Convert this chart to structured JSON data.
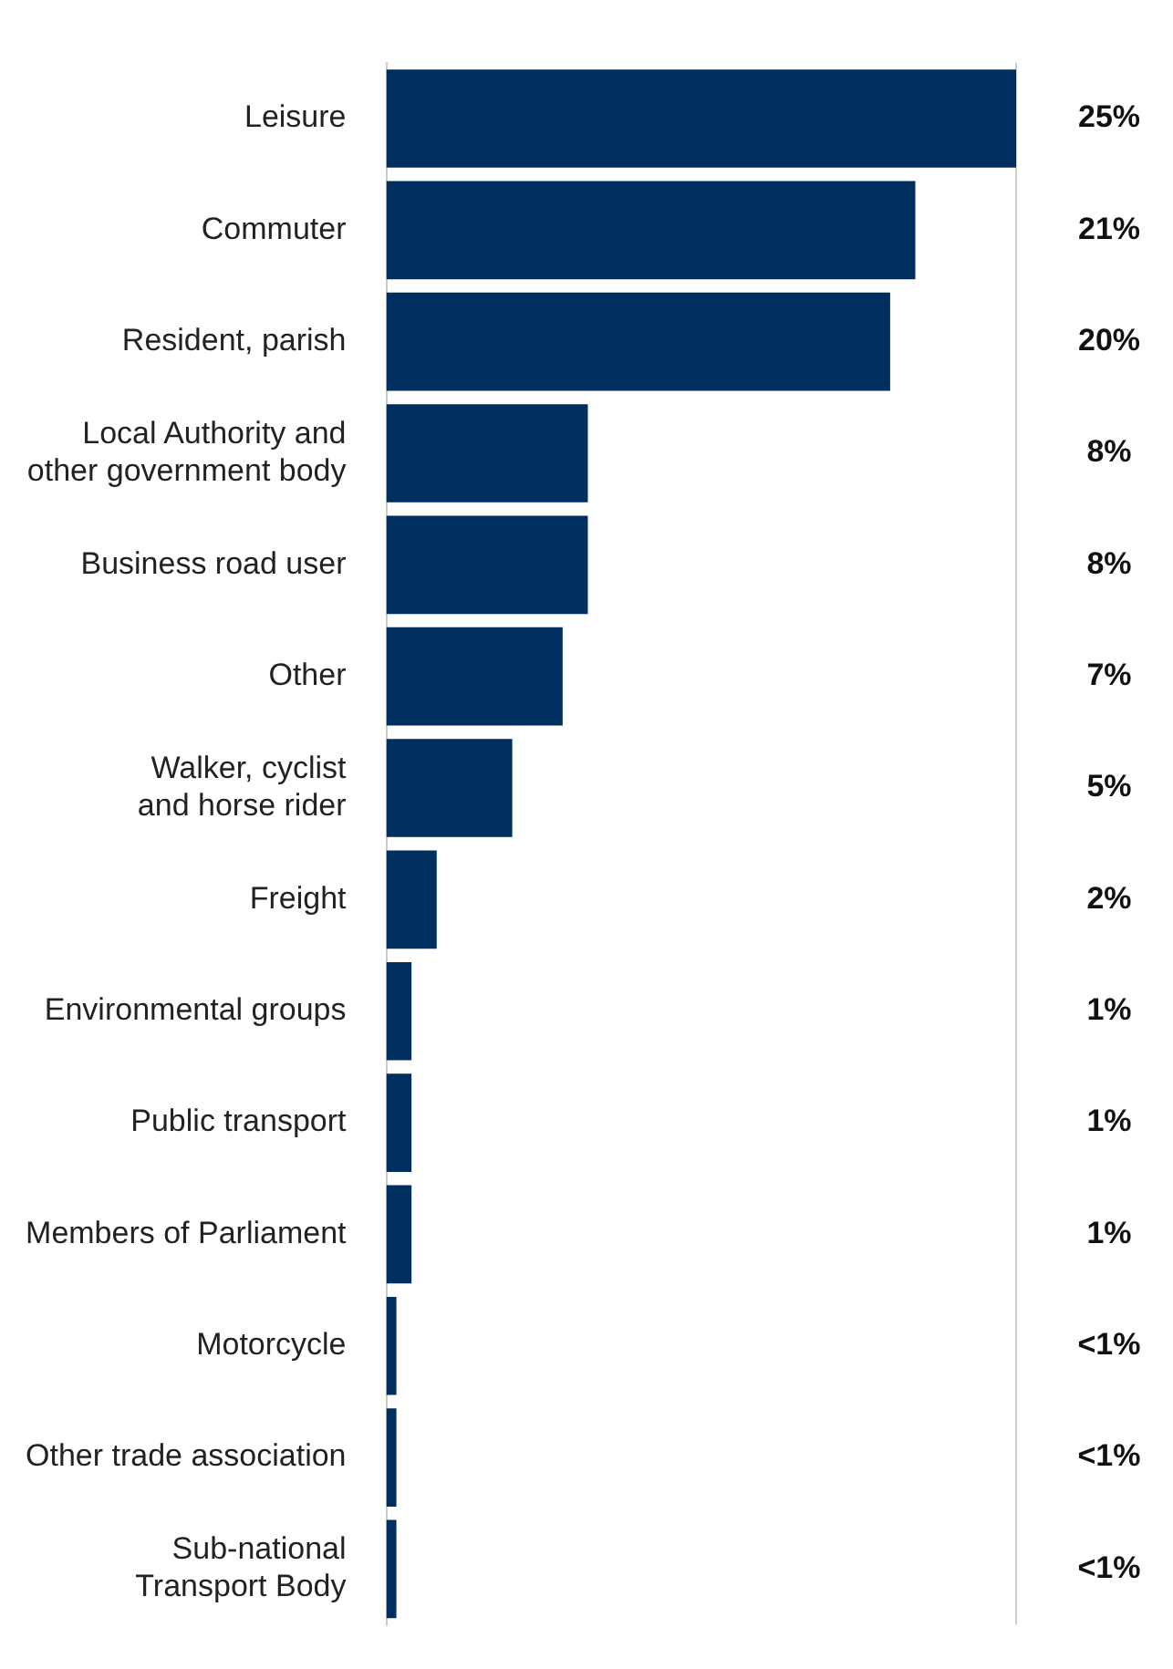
{
  "chart_data": {
    "type": "bar",
    "orientation": "horizontal",
    "categories": [
      "Leisure",
      "Commuter",
      "Resident, parish",
      "Local Authority and other government body",
      "Business road user",
      "Other",
      "Walker, cyclist and horse rider",
      "Freight",
      "Environmental groups",
      "Public transport",
      "Members of Parliament",
      "Motorcycle",
      "Other trade association",
      "Sub-national Transport Body"
    ],
    "values": [
      25,
      21,
      20,
      8,
      8,
      7,
      5,
      2,
      1,
      1,
      1,
      0.4,
      0.4,
      0.4
    ],
    "value_labels": [
      "25%",
      "21%",
      "20%",
      "8%",
      "8%",
      "7%",
      "5%",
      "2%",
      "1%",
      "1%",
      "1%",
      "<1%",
      "<1%",
      "<1%"
    ],
    "color": "#002f5f",
    "xlim": [
      0,
      25
    ],
    "ref_lines": [
      {
        "axis": "x",
        "value": 25,
        "color": "#cccccc"
      }
    ],
    "tick_labels": "y",
    "legend": false
  }
}
